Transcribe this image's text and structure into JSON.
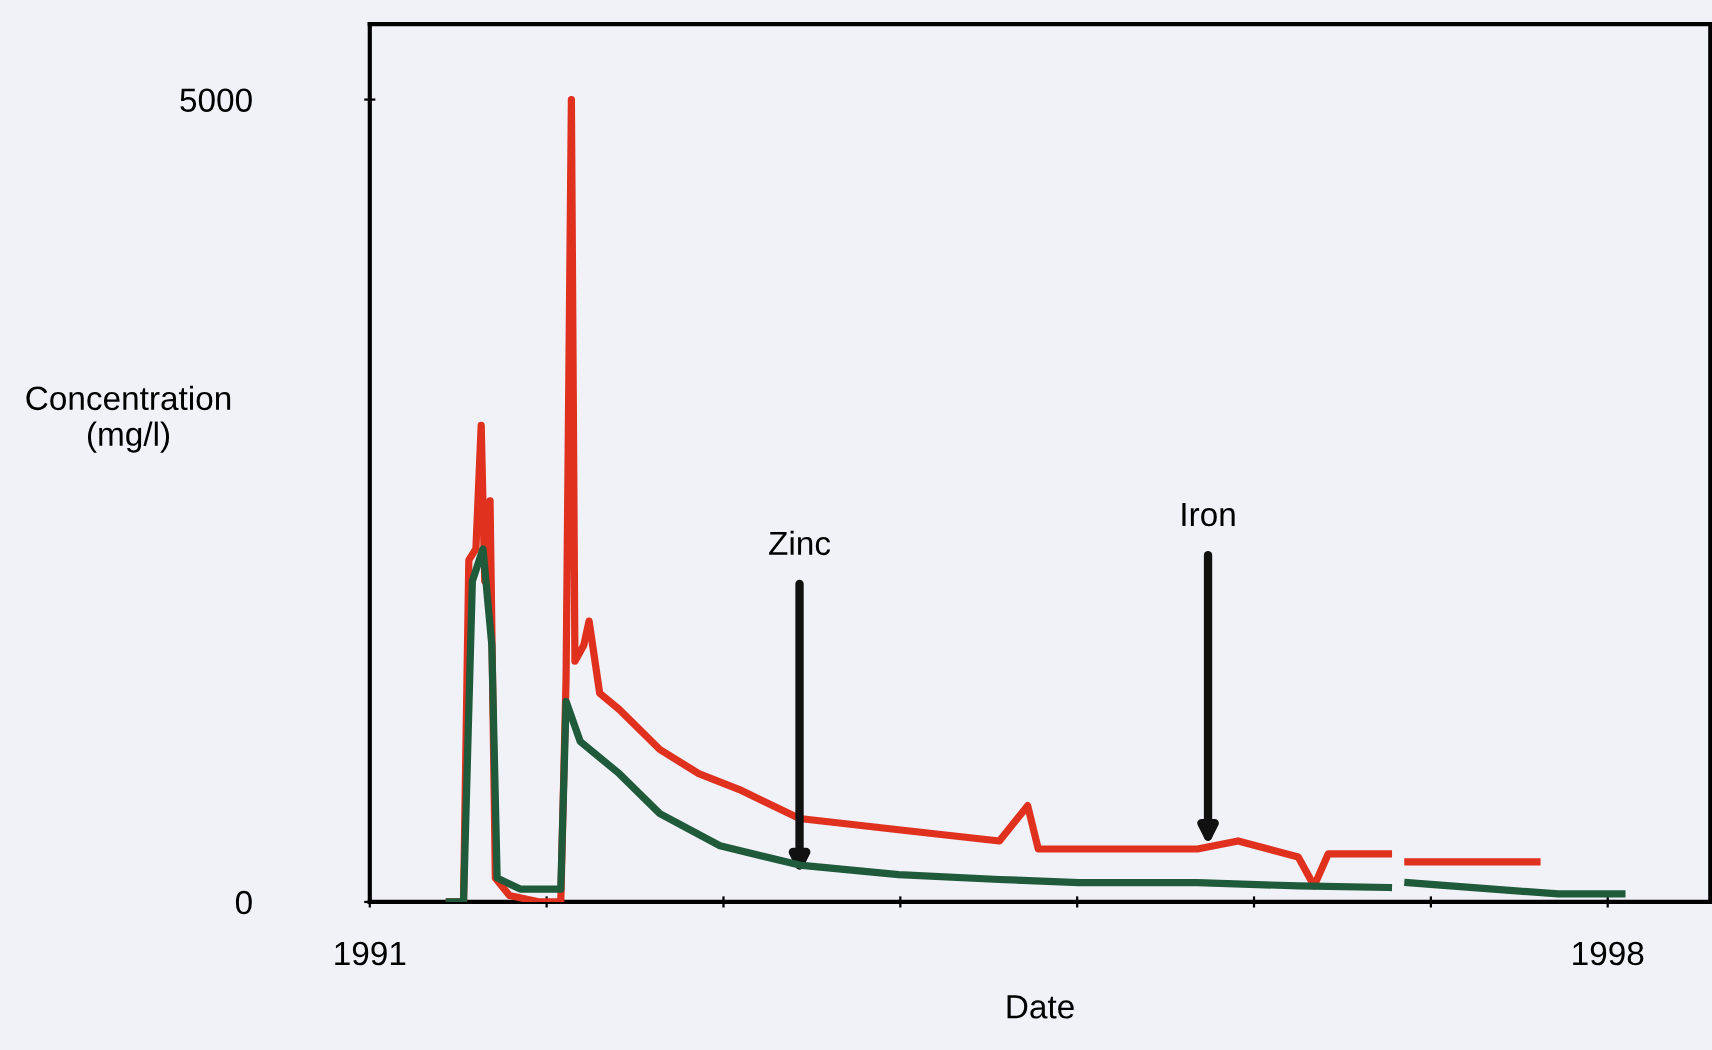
{
  "chart_data": {
    "type": "line",
    "xlabel": "Date",
    "ylabel": "Concentration\n(mg/l)",
    "xlim": [
      1991,
      1998.58
    ],
    "ylim": [
      0,
      5470
    ],
    "xticks": [
      1991,
      {
        "value": 1992,
        "label": null
      },
      {
        "value": 1993,
        "label": null
      },
      {
        "value": 1994,
        "label": null
      },
      {
        "value": 1995,
        "label": null
      },
      {
        "value": 1996,
        "label": null
      },
      {
        "value": 1997,
        "label": null
      },
      1998
    ],
    "yticks": [
      0,
      5000
    ],
    "grid": false,
    "legend": false,
    "line_style": "solid",
    "marker": "none",
    "series": [
      {
        "color": "#e0301e",
        "x": [
          1991.45,
          1991.53,
          1991.56,
          1991.6,
          1991.63,
          1991.65,
          1991.68,
          1991.71,
          1991.79,
          1991.96,
          1992.08,
          1992.11,
          1992.14,
          1992.16,
          1992.21,
          1992.24,
          1992.3,
          1992.41,
          1992.64,
          1992.86,
          1993.09,
          1993.43,
          1993.99,
          1994.56,
          1994.72,
          1994.78,
          1995.23,
          1995.68,
          1995.91,
          1996.25,
          1996.34,
          1996.42,
          1996.76,
          1996.81,
          1996.87,
          1997.6
        ],
        "values": [
          0,
          0,
          2130,
          2200,
          2970,
          2000,
          2500,
          150,
          40,
          0,
          0,
          1400,
          5000,
          1500,
          1600,
          1750,
          1300,
          1200,
          950,
          800,
          700,
          520,
          450,
          380,
          600,
          330,
          330,
          330,
          380,
          280,
          100,
          300,
          300,
          null,
          250,
          250
        ]
      },
      {
        "color": "#1f5a3a",
        "x": [
          1991.45,
          1991.53,
          1991.58,
          1991.64,
          1991.69,
          1991.72,
          1991.85,
          1992.08,
          1992.11,
          1992.19,
          1992.41,
          1992.64,
          1992.98,
          1993.43,
          1993.99,
          1994.56,
          1995.01,
          1995.68,
          1996.25,
          1996.76,
          1996.81,
          1996.87,
          1997.72,
          1998.08
        ],
        "values": [
          0,
          0,
          2000,
          2200,
          1600,
          150,
          80,
          80,
          1250,
          1000,
          800,
          550,
          350,
          230,
          170,
          140,
          120,
          120,
          100,
          90,
          null,
          120,
          50,
          50
        ]
      }
    ],
    "annotations": [
      {
        "text": "Zinc",
        "x": 1993.43,
        "y": 170
      },
      {
        "text": "Iron",
        "x": 1995.74,
        "y": 350
      }
    ]
  }
}
